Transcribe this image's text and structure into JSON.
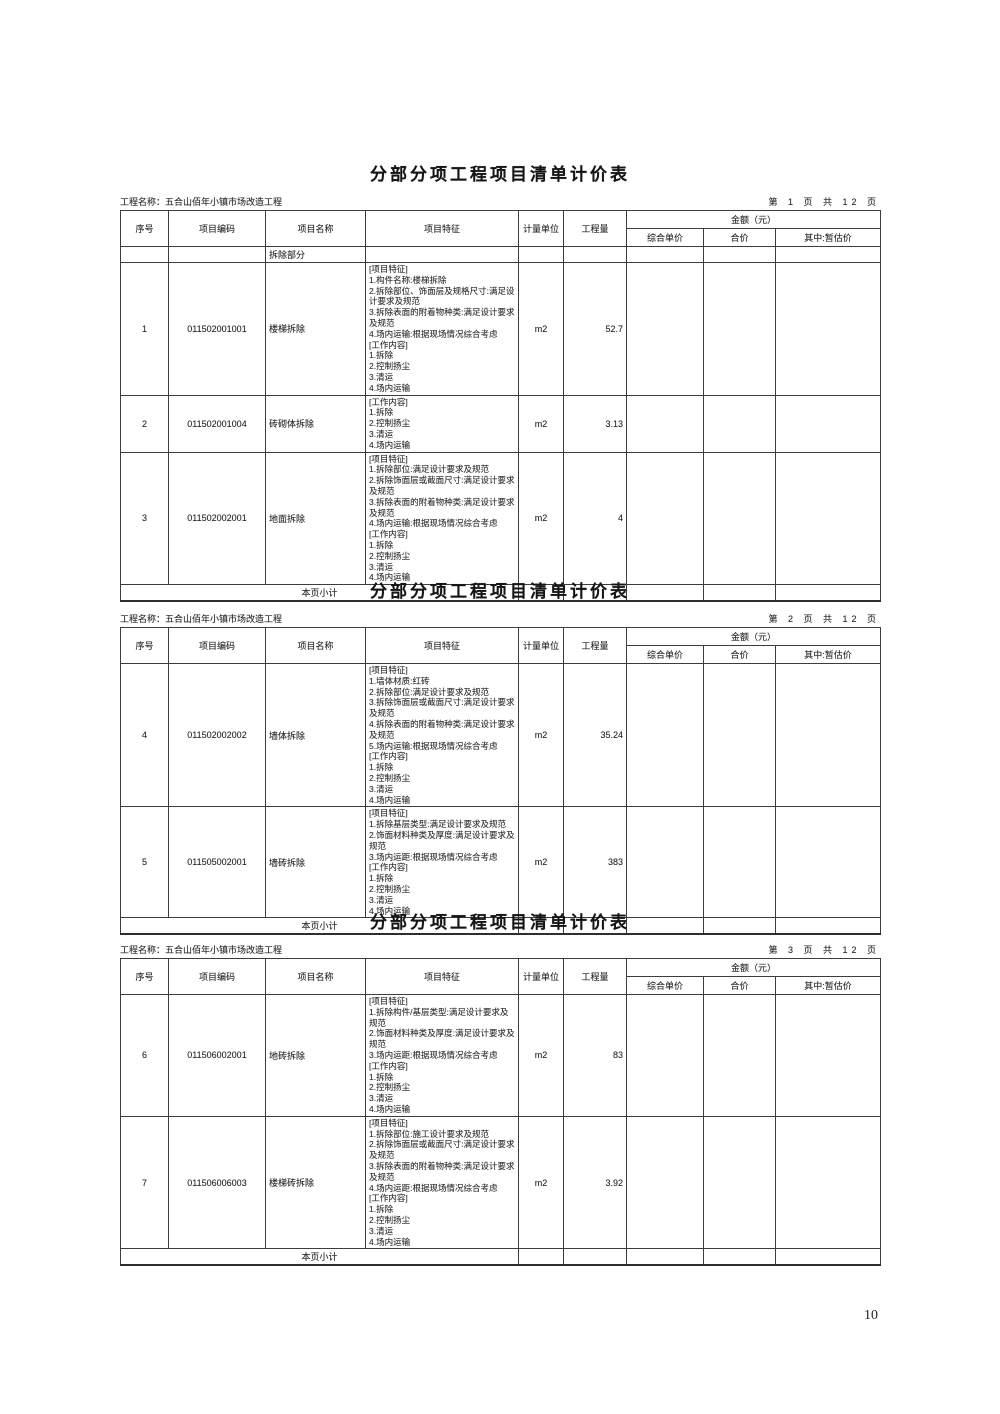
{
  "page_number": "10",
  "shared": {
    "columns": [
      "序号",
      "项目编码",
      "项目名称",
      "项目特征",
      "计量单位",
      "工程量"
    ],
    "amount_group_label": "金额（元）",
    "amount_subcolumns": [
      "综合单价",
      "合价",
      "其中:暂估价"
    ],
    "footer_label": "本页小计"
  },
  "tables": [
    {
      "title": "分部分项工程项目清单计价表",
      "project_label": "工程名称：五合山佰年小镇市场改造工程",
      "page_label": "第 1 页 共 12 页",
      "section_label": "拆除部分",
      "rows": [
        {
          "no": "1",
          "code": "011502001001",
          "name": "楼梯拆除",
          "features": [
            "[项目特征]",
            "1.构件名称:楼梯拆除",
            "2.拆除部位、饰面层及规格尺寸:满足设计要求及规范",
            "3.拆除表面的附着物种类:满足设计要求及规范",
            "4.场内运输:根据现场情况综合考虑",
            "[工作内容]",
            "1.拆除",
            "2.控制扬尘",
            "3.清运",
            "4.场内运输"
          ],
          "unit": "m2",
          "qty": "52.7"
        },
        {
          "no": "2",
          "code": "011502001004",
          "name": "砖砌体拆除",
          "features": [
            "[工作内容]",
            "1.拆除",
            "2.控制扬尘",
            "3.清运",
            "4.场内运输"
          ],
          "unit": "m2",
          "qty": "3.13"
        },
        {
          "no": "3",
          "code": "011502002001",
          "name": "地面拆除",
          "features": [
            "[项目特征]",
            "1.拆除部位:满足设计要求及规范",
            "2.拆除饰面层或截面尺寸:满足设计要求及规范",
            "3.拆除表面的附着物种类:满足设计要求及规范",
            "4.场内运输:根据现场情况综合考虑",
            "[工作内容]",
            "1.拆除",
            "2.控制扬尘",
            "3.清运",
            "4.场内运输"
          ],
          "unit": "m2",
          "qty": "4"
        }
      ]
    },
    {
      "title": "分部分项工程项目清单计价表",
      "project_label": "工程名称：五合山佰年小镇市场改造工程",
      "page_label": "第 2 页 共 12 页",
      "section_label": "",
      "rows": [
        {
          "no": "4",
          "code": "011502002002",
          "name": "墙体拆除",
          "features": [
            "[项目特征]",
            "1.墙体材质:红砖",
            "2.拆除部位:满足设计要求及规范",
            "3.拆除饰面层或截面尺寸:满足设计要求及规范",
            "4.拆除表面的附着物种类:满足设计要求及规范",
            "5.场内运输:根据现场情况综合考虑",
            "[工作内容]",
            "1.拆除",
            "2.控制扬尘",
            "3.清运",
            "4.场内运输"
          ],
          "unit": "m2",
          "qty": "35.24"
        },
        {
          "no": "5",
          "code": "011505002001",
          "name": "墙砖拆除",
          "features": [
            "[项目特征]",
            "1.拆除基层类型:满足设计要求及规范",
            "2.饰面材料种类及厚度:满足设计要求及规范",
            "3.场内运距:根据现场情况综合考虑",
            "[工作内容]",
            "1.拆除",
            "2.控制扬尘",
            "3.清运",
            "4.场内运输"
          ],
          "unit": "m2",
          "qty": "383"
        }
      ]
    },
    {
      "title": "分部分项工程项目清单计价表",
      "project_label": "工程名称：五合山佰年小镇市场改造工程",
      "page_label": "第 3 页 共 12 页",
      "section_label": "",
      "rows": [
        {
          "no": "6",
          "code": "011506002001",
          "name": "地砖拆除",
          "features": [
            "[项目特征]",
            "1.拆除构件/基层类型:满足设计要求及规范",
            "2.饰面材料种类及厚度:满足设计要求及规范",
            "3.场内运距:根据现场情况综合考虑",
            "[工作内容]",
            "1.拆除",
            "2.控制扬尘",
            "3.清运",
            "4.场内运输"
          ],
          "unit": "m2",
          "qty": "83"
        },
        {
          "no": "7",
          "code": "011506006003",
          "name": "楼梯砖拆除",
          "features": [
            "[项目特征]",
            "1.拆除部位:施工设计要求及规范",
            "2.拆除饰面层或截面尺寸:满足设计要求及规范",
            "3.拆除表面的附着物种类:满足设计要求及规范",
            "4.场内运距:根据现场情况综合考虑",
            "[工作内容]",
            "1.拆除",
            "2.控制扬尘",
            "3.清运",
            "4.场内运输"
          ],
          "unit": "m2",
          "qty": "3.92"
        }
      ]
    }
  ]
}
